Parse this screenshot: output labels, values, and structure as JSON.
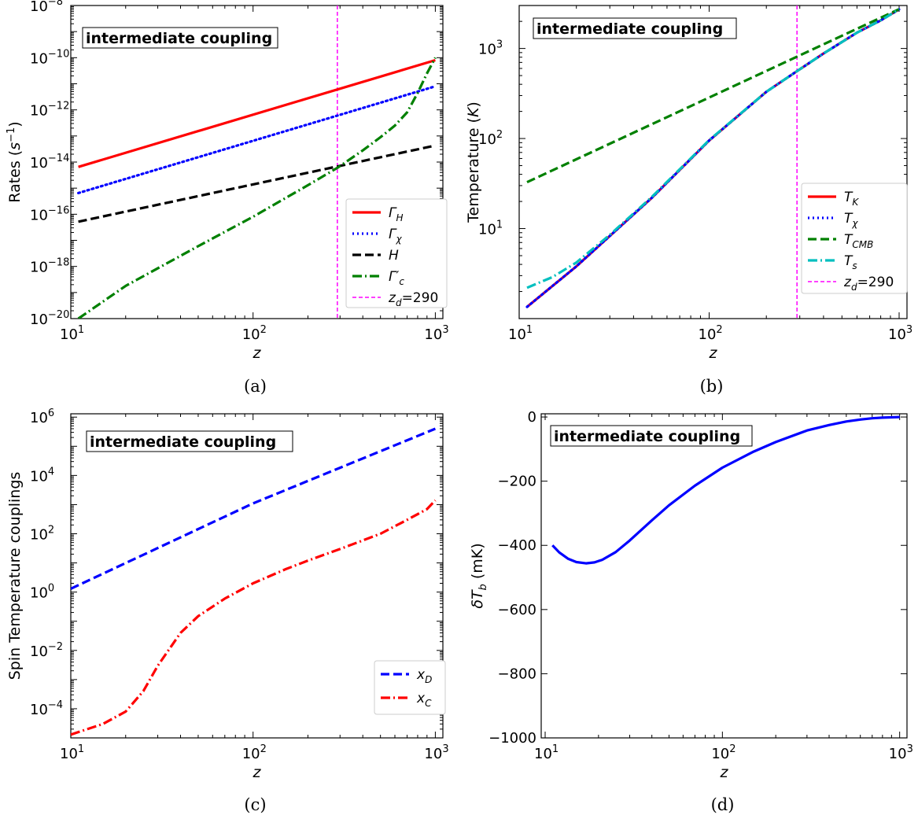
{
  "chart_data": [
    {
      "panel": "a",
      "type": "line",
      "caption": "(a)",
      "annotation": "intermediate coupling",
      "xlabel": "z",
      "ylabel": "Rates (s⁻¹)",
      "xscale": "log",
      "yscale": "log",
      "xlim": [
        10,
        1100
      ],
      "ylim": [
        1e-20,
        1e-08
      ],
      "xticks": [
        {
          "v": 10,
          "b": "10",
          "e": "1"
        },
        {
          "v": 100,
          "b": "10",
          "e": "2"
        },
        {
          "v": 1000,
          "b": "10",
          "e": "3"
        }
      ],
      "yticks": [
        {
          "v": 1e-20,
          "b": "10",
          "e": "−20"
        },
        {
          "v": 1e-18,
          "b": "10",
          "e": "−18"
        },
        {
          "v": 1e-16,
          "b": "10",
          "e": "−16"
        },
        {
          "v": 1e-14,
          "b": "10",
          "e": "−14"
        },
        {
          "v": 1e-12,
          "b": "10",
          "e": "−12"
        },
        {
          "v": 1e-10,
          "b": "10",
          "e": "−10"
        },
        {
          "v": 1e-08,
          "b": "10",
          "e": "−8"
        }
      ],
      "legend": "lower-right",
      "vline": {
        "x": 290,
        "color": "#ff00ff",
        "name": "z_d=290"
      },
      "series": [
        {
          "name": "Γ_H",
          "color": "#ff0000",
          "style": "solid",
          "x": [
            11,
            1000
          ],
          "y": [
            6.5e-15,
            8e-11
          ]
        },
        {
          "name": "Γ_χ",
          "color": "#0000ff",
          "style": "dotted",
          "x": [
            11,
            1000
          ],
          "y": [
            6.5e-16,
            8e-12
          ]
        },
        {
          "name": "H",
          "color": "#000000",
          "style": "dashed",
          "x": [
            11,
            1000
          ],
          "y": [
            5.2e-17,
            4.3e-14
          ]
        },
        {
          "name": "Γ′_c",
          "color": "#008000",
          "style": "dashdot",
          "x": [
            11,
            20,
            50,
            100,
            200,
            290,
            400,
            500,
            600,
            700,
            800,
            900,
            1000
          ],
          "y": [
            1e-20,
            1.8e-19,
            6e-18,
            8e-17,
            1.3e-15,
            6e-15,
            2.8e-14,
            9e-14,
            2.5e-13,
            8e-13,
            4.5e-12,
            2.5e-11,
            1e-10
          ]
        }
      ]
    },
    {
      "panel": "b",
      "type": "line",
      "caption": "(b)",
      "annotation": "intermediate coupling",
      "xlabel": "z",
      "ylabel": "Temperature (K)",
      "xscale": "log",
      "yscale": "log",
      "xlim": [
        10,
        1100
      ],
      "ylim": [
        1,
        3000
      ],
      "xticks": [
        {
          "v": 10,
          "b": "10",
          "e": "1"
        },
        {
          "v": 100,
          "b": "10",
          "e": "2"
        },
        {
          "v": 1000,
          "b": "10",
          "e": "3"
        }
      ],
      "yticks": [
        {
          "v": 10,
          "b": "10",
          "e": "1"
        },
        {
          "v": 100,
          "b": "10",
          "e": "2"
        },
        {
          "v": 1000,
          "b": "10",
          "e": "3"
        }
      ],
      "legend": "lower-right",
      "vline": {
        "x": 290,
        "color": "#ff00ff",
        "name": "z_d=290"
      },
      "series": [
        {
          "name": "T_K",
          "color": "#ff0000",
          "style": "solid",
          "x": [
            11,
            20,
            50,
            100,
            200,
            290,
            400,
            600,
            800,
            1000
          ],
          "y": [
            1.35,
            3.8,
            22,
            95,
            330,
            560,
            880,
            1500,
            2050,
            2720
          ]
        },
        {
          "name": "T_χ",
          "color": "#0000ff",
          "style": "dotted",
          "x": [
            11,
            20,
            50,
            100,
            200,
            290,
            400,
            600,
            800,
            1000
          ],
          "y": [
            1.35,
            3.8,
            22,
            95,
            330,
            560,
            880,
            1500,
            2050,
            2720
          ]
        },
        {
          "name": "T_CMB",
          "color": "#008000",
          "style": "dashed",
          "x": [
            11,
            1000
          ],
          "y": [
            32.7,
            2727
          ]
        },
        {
          "name": "T_s",
          "color": "#00bfbf",
          "style": "dashdot",
          "x": [
            11,
            15,
            20,
            30,
            50,
            100,
            200,
            290,
            400,
            600,
            800,
            1000
          ],
          "y": [
            2.2,
            2.9,
            4.2,
            8.5,
            22.5,
            96,
            330,
            560,
            880,
            1500,
            2050,
            2720
          ]
        }
      ]
    },
    {
      "panel": "c",
      "type": "line",
      "caption": "(c)",
      "annotation": "intermediate coupling",
      "xlabel": "z",
      "ylabel": "Spin Temperature couplings",
      "xscale": "log",
      "yscale": "log",
      "xlim": [
        10,
        1100
      ],
      "ylim": [
        1e-05,
        1300000.0
      ],
      "xticks": [
        {
          "v": 10,
          "b": "10",
          "e": "1"
        },
        {
          "v": 100,
          "b": "10",
          "e": "2"
        },
        {
          "v": 1000,
          "b": "10",
          "e": "3"
        }
      ],
      "yticks": [
        {
          "v": 0.0001,
          "b": "10",
          "e": "−4"
        },
        {
          "v": 0.01,
          "b": "10",
          "e": "−2"
        },
        {
          "v": 1,
          "b": "10",
          "e": "0"
        },
        {
          "v": 100,
          "b": "10",
          "e": "2"
        },
        {
          "v": 10000,
          "b": "10",
          "e": "4"
        },
        {
          "v": 1000000,
          "b": "10",
          "e": "6"
        }
      ],
      "legend": "lower-right",
      "series": [
        {
          "name": "x_D",
          "color": "#0000ff",
          "style": "dashed",
          "x": [
            10,
            100,
            1000
          ],
          "y": [
            1.3,
            1100,
            400000.0
          ]
        },
        {
          "name": "x_C",
          "color": "#ff0000",
          "style": "dashdot",
          "x": [
            10,
            15,
            20,
            25,
            30,
            40,
            50,
            70,
            100,
            150,
            200,
            300,
            500,
            700,
            900,
            1000
          ],
          "y": [
            1.3e-05,
            3e-05,
            8e-05,
            0.0004,
            0.003,
            0.04,
            0.15,
            0.6,
            2,
            6,
            12,
            30,
            100,
            300,
            700,
            1400
          ]
        }
      ]
    },
    {
      "panel": "d",
      "type": "line",
      "caption": "(d)",
      "annotation": "intermediate coupling",
      "xlabel": "z",
      "ylabel": "δT_b (mK)",
      "xscale": "log",
      "yscale": "linear",
      "xlim": [
        9.5,
        1100
      ],
      "ylim": [
        -1000,
        10
      ],
      "xticks": [
        {
          "v": 10,
          "b": "10",
          "e": "1"
        },
        {
          "v": 100,
          "b": "10",
          "e": "2"
        },
        {
          "v": 1000,
          "b": "10",
          "e": "3"
        }
      ],
      "yticks": [
        {
          "v": -1000,
          "t": "−1000"
        },
        {
          "v": -800,
          "t": "−800"
        },
        {
          "v": -600,
          "t": "−600"
        },
        {
          "v": -400,
          "t": "−400"
        },
        {
          "v": -200,
          "t": "−200"
        },
        {
          "v": 0,
          "t": "0"
        }
      ],
      "series": [
        {
          "name": "",
          "color": "#0000ff",
          "style": "solid",
          "x": [
            11,
            12,
            13.5,
            15,
            17,
            19,
            21,
            25,
            30,
            40,
            50,
            70,
            100,
            150,
            200,
            300,
            400,
            500,
            600,
            700,
            800,
            900,
            1000
          ],
          "y": [
            -400,
            -422,
            -442,
            -452,
            -456,
            -453,
            -445,
            -421,
            -385,
            -322,
            -275,
            -214,
            -158,
            -108,
            -78,
            -42,
            -25,
            -14,
            -8,
            -4,
            -2,
            -1,
            0
          ]
        }
      ]
    }
  ]
}
